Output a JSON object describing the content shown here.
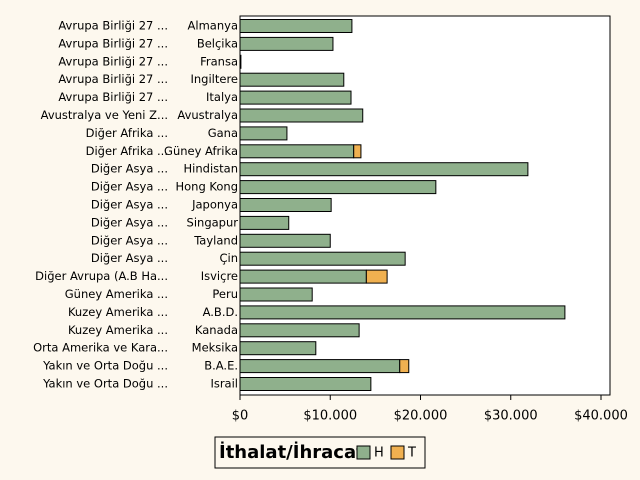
{
  "chart_data": {
    "type": "bar",
    "orientation": "horizontal",
    "stacked": true,
    "legend_title": "İthalat/İhracat",
    "groups": [
      "Avrupa Birliği 27 ...",
      "Avrupa Birliği 27 ...",
      "Avrupa Birliği 27 ...",
      "Avrupa Birliği 27 ...",
      "Avrupa Birliği 27 ...",
      "Avustralya ve Yeni Z...",
      "Diğer Afrika ...",
      "Diğer Afrika ...",
      "Diğer Asya ...",
      "Diğer Asya ...",
      "Diğer Asya ...",
      "Diğer Asya ...",
      "Diğer Asya ...",
      "Diğer Asya ...",
      "Diğer Avrupa (A.B Ha...",
      "Güney Amerika ...",
      "Kuzey Amerika ...",
      "Kuzey Amerika ...",
      "Orta Amerika ve Kara...",
      "Yakın ve Orta Doğu ...",
      "Yakın ve Orta Doğu ..."
    ],
    "categories": [
      "Almanya",
      "Belçika",
      "Fransa",
      "Ingiltere",
      "Italya",
      "Avustralya",
      "Gana",
      "Güney Afrika",
      "Hindistan",
      "Hong Kong",
      "Japonya",
      "Singapur",
      "Tayland",
      "Çin",
      "Isviçre",
      "Peru",
      "A.B.D.",
      "Kanada",
      "Meksika",
      "B.A.E.",
      "Israil"
    ],
    "series": [
      {
        "name": "H",
        "color": "#8fb08c",
        "values": [
          12400,
          10300,
          100,
          11500,
          12300,
          13600,
          5200,
          12600,
          31900,
          21700,
          10100,
          5400,
          10000,
          18300,
          14000,
          8000,
          36000,
          13200,
          8400,
          17700,
          14500
        ]
      },
      {
        "name": "T",
        "color": "#f0b050",
        "values": [
          null,
          null,
          null,
          null,
          null,
          null,
          null,
          800,
          null,
          null,
          null,
          null,
          null,
          null,
          2300,
          null,
          null,
          null,
          null,
          1000,
          null
        ]
      }
    ],
    "xlim": [
      0,
      40000
    ],
    "xticks": [
      {
        "value": 0,
        "label": "$0"
      },
      {
        "value": 10000,
        "label": "$10.000"
      },
      {
        "value": 20000,
        "label": "$20.000"
      },
      {
        "value": 30000,
        "label": "$30.000"
      },
      {
        "value": 40000,
        "label": "$40.000"
      }
    ]
  }
}
